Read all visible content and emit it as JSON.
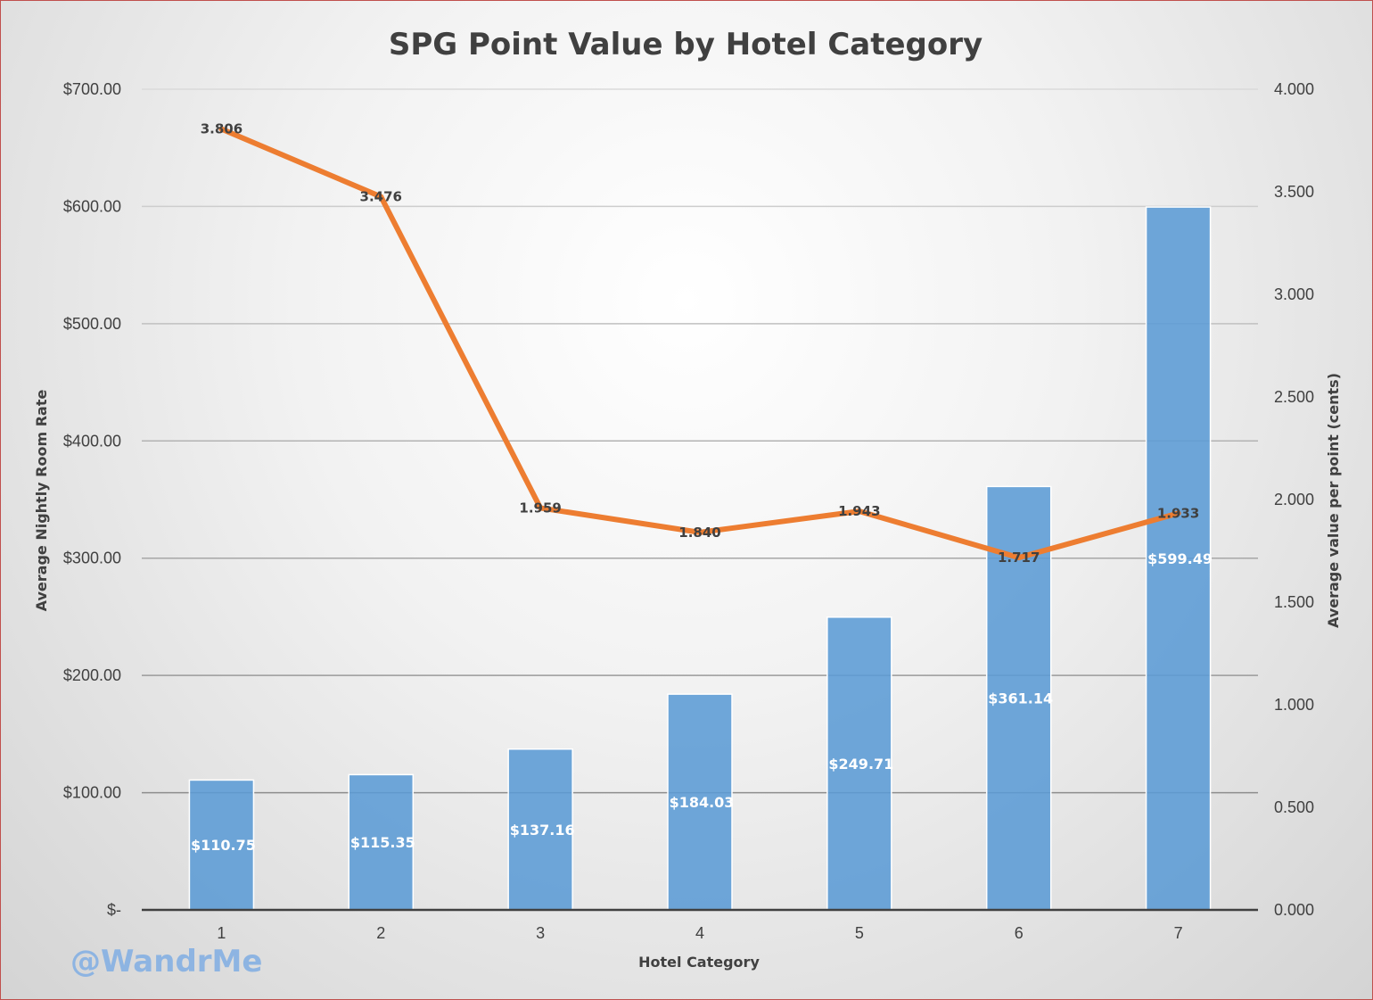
{
  "chart_data": {
    "type": "bar",
    "title": "SPG Point Value by Hotel Category",
    "xlabel": "Hotel Category",
    "ylabel": "Average Nightly Room Rate",
    "y2label": "Average value per point (cents)",
    "categories": [
      "1",
      "2",
      "3",
      "4",
      "5",
      "6",
      "7"
    ],
    "ylim": [
      0,
      700
    ],
    "y2lim": [
      0,
      4
    ],
    "y_ticks": [
      "$-",
      "$100.00",
      "$200.00",
      "$300.00",
      "$400.00",
      "$500.00",
      "$600.00",
      "$700.00"
    ],
    "y2_ticks": [
      "0.000",
      "0.500",
      "1.000",
      "1.500",
      "2.000",
      "2.500",
      "3.000",
      "3.500",
      "4.000"
    ],
    "series": [
      {
        "name": "Average Nightly Room Rate",
        "type": "bar",
        "axis": "left",
        "color": "#5b9bd5",
        "values": [
          110.75,
          115.35,
          137.16,
          184.03,
          249.71,
          361.14,
          599.49
        ],
        "labels": [
          "$110.75",
          "$115.35",
          "$137.16",
          "$184.03",
          "$249.71",
          "$361.14",
          "$599.49"
        ]
      },
      {
        "name": "Average value per point (cents)",
        "type": "line",
        "axis": "right",
        "color": "#ed7d31",
        "values": [
          3.806,
          3.476,
          1.959,
          1.84,
          1.943,
          1.717,
          1.933
        ],
        "labels": [
          "3.806",
          "3.476",
          "1.959",
          "1.840",
          "1.943",
          "1.717",
          "1.933"
        ]
      }
    ],
    "grid": true,
    "watermark": "@WandrMe"
  }
}
